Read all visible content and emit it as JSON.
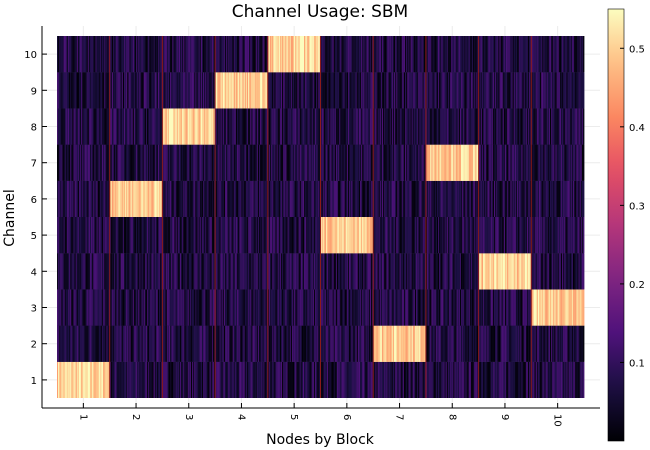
{
  "chart_data": {
    "type": "heatmap",
    "title": "Channel Usage: SBM",
    "xlabel": "Nodes by Block",
    "ylabel": "Channel",
    "x_categories": [
      "1",
      "2",
      "3",
      "4",
      "5",
      "6",
      "7",
      "8",
      "9",
      "10"
    ],
    "y_categories": [
      "1",
      "2",
      "3",
      "4",
      "5",
      "6",
      "7",
      "8",
      "9",
      "10"
    ],
    "block_dominant_channel": [
      1,
      6,
      8,
      9,
      10,
      5,
      2,
      7,
      4,
      3
    ],
    "dominant_value": 0.5,
    "background_value": 0.05,
    "values": [
      [
        0.5,
        0.05,
        0.05,
        0.05,
        0.05,
        0.05,
        0.05,
        0.05,
        0.05,
        0.05
      ],
      [
        0.05,
        0.05,
        0.05,
        0.05,
        0.05,
        0.05,
        0.5,
        0.05,
        0.05,
        0.05
      ],
      [
        0.05,
        0.05,
        0.05,
        0.05,
        0.05,
        0.05,
        0.05,
        0.05,
        0.05,
        0.5
      ],
      [
        0.05,
        0.05,
        0.05,
        0.05,
        0.05,
        0.05,
        0.05,
        0.05,
        0.5,
        0.05
      ],
      [
        0.05,
        0.05,
        0.05,
        0.05,
        0.05,
        0.5,
        0.05,
        0.05,
        0.05,
        0.05
      ],
      [
        0.05,
        0.5,
        0.05,
        0.05,
        0.05,
        0.05,
        0.05,
        0.05,
        0.05,
        0.05
      ],
      [
        0.05,
        0.05,
        0.05,
        0.05,
        0.05,
        0.05,
        0.05,
        0.5,
        0.05,
        0.05
      ],
      [
        0.05,
        0.05,
        0.5,
        0.05,
        0.05,
        0.05,
        0.05,
        0.05,
        0.05,
        0.05
      ],
      [
        0.05,
        0.05,
        0.05,
        0.5,
        0.05,
        0.05,
        0.05,
        0.05,
        0.05,
        0.05
      ],
      [
        0.05,
        0.05,
        0.05,
        0.05,
        0.5,
        0.05,
        0.05,
        0.05,
        0.05,
        0.05
      ]
    ],
    "colorbar": {
      "colormap": "magma",
      "range": [
        0,
        0.55
      ],
      "ticks": [
        0.1,
        0.2,
        0.3,
        0.4,
        0.5
      ],
      "tick_labels": [
        "0.1",
        "0.2",
        "0.3",
        "0.4",
        "0.5"
      ]
    },
    "grid": true,
    "block_separator_color": "#8b1a1a"
  }
}
